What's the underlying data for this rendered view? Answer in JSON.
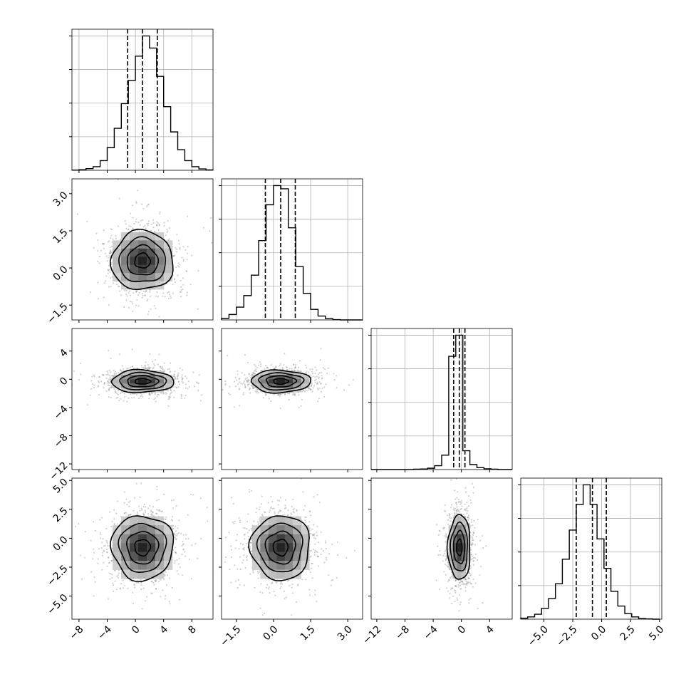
{
  "chart_data": {
    "type": "corner",
    "grid": true,
    "parameters": [
      {
        "range": [
          -9,
          11
        ],
        "ticks": [
          -8,
          -4,
          0,
          4,
          8
        ],
        "tick_labels": [
          "−8",
          "−4",
          "0",
          "4",
          "8"
        ],
        "quantiles": [
          -1.1,
          1.0,
          3.1
        ]
      },
      {
        "range": [
          -2.1,
          3.6
        ],
        "ticks": [
          -1.5,
          0.0,
          1.5,
          3.0
        ],
        "tick_labels": [
          "−1.5",
          "0.0",
          "1.5",
          "3.0"
        ],
        "quantiles": [
          -0.33,
          0.29,
          0.88
        ]
      },
      {
        "range": [
          -12.8,
          7.2
        ],
        "ticks": [
          -12,
          -8,
          -4,
          0,
          4
        ],
        "tick_labels": [
          "−12",
          "−8",
          "−4",
          "0",
          "4"
        ],
        "quantiles": [
          -1.1,
          -0.3,
          0.5
        ]
      },
      {
        "range": [
          -7.0,
          5.2
        ],
        "ticks": [
          -5.0,
          -2.5,
          0.0,
          2.5,
          5.0
        ],
        "tick_labels": [
          "−5.0",
          "−2.5",
          "0.0",
          "2.5",
          "5.0"
        ],
        "quantiles": [
          -2.2,
          -0.8,
          0.4
        ]
      }
    ],
    "histograms": [
      {
        "bin_edges": [
          -9,
          -8,
          -7,
          -6,
          -5,
          -4,
          -3,
          -2,
          -1,
          0,
          1,
          2,
          3,
          4,
          5,
          6,
          7,
          8,
          9,
          10,
          11
        ],
        "counts": [
          1,
          3,
          8,
          18,
          48,
          112,
          208,
          330,
          445,
          565,
          665,
          605,
          465,
          315,
          190,
          102,
          48,
          18,
          7,
          2
        ]
      },
      {
        "bin_edges": [
          -2.1,
          -1.8,
          -1.5,
          -1.2,
          -0.9,
          -0.6,
          -0.3,
          0.0,
          0.3,
          0.6,
          0.9,
          1.2,
          1.5,
          1.8,
          2.1,
          2.4,
          2.7,
          3.0,
          3.3,
          3.6
        ],
        "counts": [
          5,
          17,
          40,
          76,
          140,
          248,
          360,
          420,
          410,
          288,
          167,
          83,
          33,
          12,
          4,
          1,
          0,
          0,
          0
        ]
      },
      {
        "bin_edges": [
          -12.8,
          -11.8,
          -10.8,
          -9.8,
          -8.8,
          -7.8,
          -6.8,
          -5.8,
          -4.8,
          -3.8,
          -2.8,
          -1.8,
          -0.8,
          0.2,
          1.2,
          2.2,
          3.2,
          4.2,
          5.2,
          6.2,
          7.2
        ],
        "counts": [
          0,
          0,
          0,
          0,
          0,
          0,
          2,
          3,
          7,
          20,
          75,
          590,
          700,
          98,
          26,
          10,
          4,
          2,
          0,
          0
        ]
      },
      {
        "bin_edges": [
          -7.0,
          -6.4,
          -5.8,
          -5.2,
          -4.6,
          -4.0,
          -3.4,
          -2.8,
          -2.2,
          -1.6,
          -1.0,
          -0.4,
          0.2,
          0.8,
          1.4,
          2.0,
          2.6,
          3.2,
          3.8,
          4.4,
          5.0
        ],
        "counts": [
          3,
          7,
          15,
          33,
          63,
          108,
          183,
          272,
          350,
          410,
          350,
          245,
          155,
          85,
          40,
          17,
          7,
          2,
          1,
          0
        ]
      }
    ],
    "pairs": [
      {
        "row": 1,
        "col": 0,
        "center": [
          1.0,
          0.29
        ],
        "sigma": [
          2.2,
          0.6
        ],
        "corr": 0.0
      },
      {
        "row": 2,
        "col": 0,
        "center": [
          1.0,
          -0.3
        ],
        "sigma": [
          2.2,
          0.8
        ],
        "corr": 0.0
      },
      {
        "row": 2,
        "col": 1,
        "center": [
          0.29,
          -0.3
        ],
        "sigma": [
          0.6,
          0.8
        ],
        "corr": 0.0
      },
      {
        "row": 3,
        "col": 0,
        "center": [
          1.0,
          -0.8
        ],
        "sigma": [
          2.2,
          1.4
        ],
        "corr": 0.0
      },
      {
        "row": 3,
        "col": 1,
        "center": [
          0.29,
          -0.8
        ],
        "sigma": [
          0.6,
          1.4
        ],
        "corr": 0.0
      },
      {
        "row": 3,
        "col": 2,
        "center": [
          -0.3,
          -0.8
        ],
        "sigma": [
          0.8,
          1.4
        ],
        "corr": 0.0
      }
    ]
  }
}
